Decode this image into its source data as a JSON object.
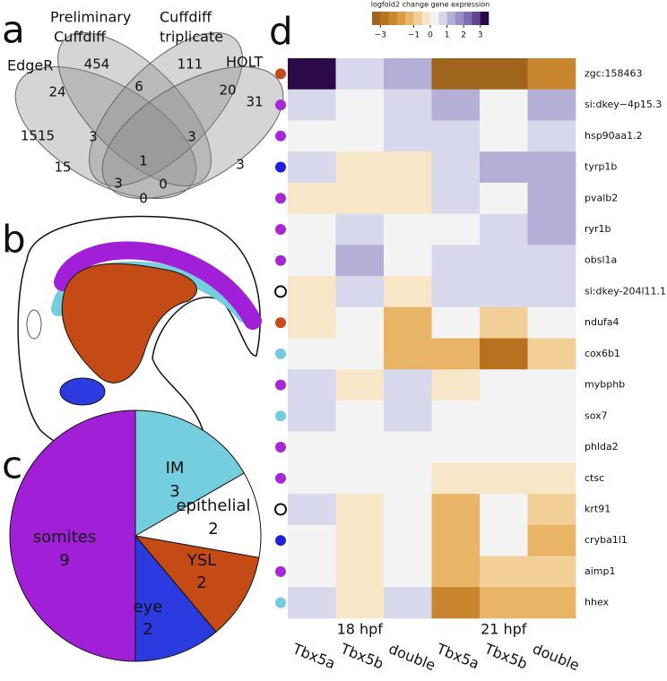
{
  "panel_labels": [
    "a",
    "b",
    "c",
    "d"
  ],
  "venn": {
    "sets": [
      [
        "EdgeR"
      ],
      [
        "Preliminary",
        "Cuffdiff"
      ],
      [
        "Cuffdiff",
        "triplicate"
      ],
      [
        "HOLT"
      ]
    ],
    "counts": [
      1515,
      454,
      111,
      31,
      24,
      6,
      20,
      3,
      3,
      1,
      15,
      3,
      3,
      0,
      0
    ]
  },
  "chart_data": [
    {
      "type": "pie",
      "categories": [
        "IM",
        "epithelial",
        "YSL",
        "eye",
        "somites"
      ],
      "values": [
        3,
        2,
        2,
        2,
        9
      ],
      "colors": [
        "#74cede",
        "#ffffff",
        "#c44a16",
        "#2c3be0",
        "#a21fd8"
      ]
    },
    {
      "type": "heatmap",
      "x": [
        "Tbx5a",
        "Tbx5b",
        "double",
        "Tbx5a",
        "Tbx5b",
        "double"
      ],
      "groups": [
        "18 hpf",
        "21 hpf"
      ],
      "y": [
        "zgc:158463",
        "si:dkey−4p15.3",
        "hsp90aa1.2",
        "tyrp1b",
        "pvalb2",
        "ryr1b",
        "obsl1a",
        "si:dkey-204l11.1",
        "ndufa4",
        "cox6b1",
        "mybphb",
        "sox7",
        "phlda2",
        "ctsc",
        "krt91",
        "cryba1l1",
        "aimp1",
        "hhex"
      ],
      "row_colors": [
        "#c84a1c",
        "#a726d6",
        "#a726d6",
        "#1f1fe0",
        "#a726d6",
        "#a726d6",
        "#a726d6",
        "#ffffff",
        "#c84a1c",
        "#70ccde",
        "#a726d6",
        "#70ccde",
        "#a726d6",
        "#a726d6",
        "#ffffff",
        "#1f1fe0",
        "#a726d6",
        "#70ccde"
      ],
      "values": [
        [
          3.3,
          0.6,
          1.2,
          -3.1,
          -3.1,
          -2.3
        ],
        [
          0.6,
          0,
          0.6,
          1.2,
          0,
          1.2
        ],
        [
          0,
          0,
          0.6,
          0.6,
          0,
          0.6
        ],
        [
          0.6,
          -0.4,
          -0.4,
          0.6,
          1.2,
          1.2
        ],
        [
          -0.4,
          -0.4,
          -0.4,
          0.6,
          0,
          1.2
        ],
        [
          0,
          0.6,
          0,
          0.3,
          0.6,
          1.2
        ],
        [
          0,
          1.3,
          0,
          0.6,
          0.6,
          0.6
        ],
        [
          -0.4,
          0.6,
          -0.4,
          0.6,
          0.6,
          0.6
        ],
        [
          -0.4,
          0,
          -1.4,
          0,
          -0.7,
          0
        ],
        [
          0,
          0,
          -1.4,
          -1.4,
          -2.6,
          -0.7
        ],
        [
          0.6,
          -0.4,
          0.6,
          -0.4,
          0,
          0
        ],
        [
          0.6,
          0,
          0.6,
          0,
          0,
          0
        ],
        [
          0,
          0,
          0,
          0,
          0,
          0
        ],
        [
          0,
          0,
          0,
          -0.4,
          -0.4,
          -0.4
        ],
        [
          0.6,
          -0.4,
          0,
          -1.4,
          0,
          -0.7
        ],
        [
          0,
          -0.4,
          0,
          -1.4,
          0,
          -1.4
        ],
        [
          0,
          -0.4,
          0,
          -1.4,
          -0.7,
          -0.7
        ],
        [
          0.6,
          -0.4,
          0.6,
          -2.3,
          -1.4,
          -1.4
        ]
      ],
      "colorbar_title": "logfold2 change gene expression",
      "zlim": [
        -3.5,
        3.5
      ],
      "zticks": [
        {
          "value": -3,
          "label": "−3"
        },
        {
          "value": -1,
          "label": "−1"
        },
        0,
        1,
        2,
        3
      ],
      "colors": [
        "#a0651c",
        "#b8721f",
        "#c8862e",
        "#d99c45",
        "#e8b466",
        "#f2cf97",
        "#f8e6c9",
        "#f3f3f3",
        "#d8d8ec",
        "#b3afd6",
        "#9a90c6",
        "#7f6bb0",
        "#5e4590",
        "#2c0a4a"
      ]
    }
  ]
}
